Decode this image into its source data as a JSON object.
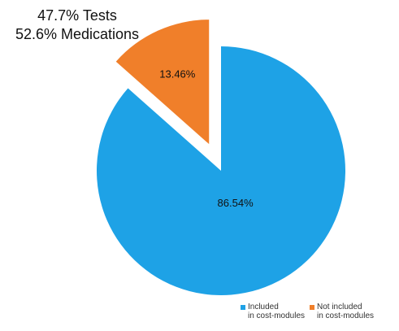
{
  "note": {
    "line1": "47.7% Tests",
    "line2": "52.6% Medications"
  },
  "chart_data": {
    "type": "pie",
    "slices": [
      {
        "label": "Included in cost-modules",
        "label_lines": [
          "Included",
          "in cost-modules"
        ],
        "value": 86.54,
        "value_label": "86.54%",
        "color": "#1ea2e6"
      },
      {
        "label": "Not included in cost-modules",
        "label_lines": [
          "Not included",
          "in cost-modules"
        ],
        "value": 13.46,
        "value_label": "13.46%",
        "color": "#f07f2a"
      }
    ],
    "legend_position": "bottom-right"
  }
}
